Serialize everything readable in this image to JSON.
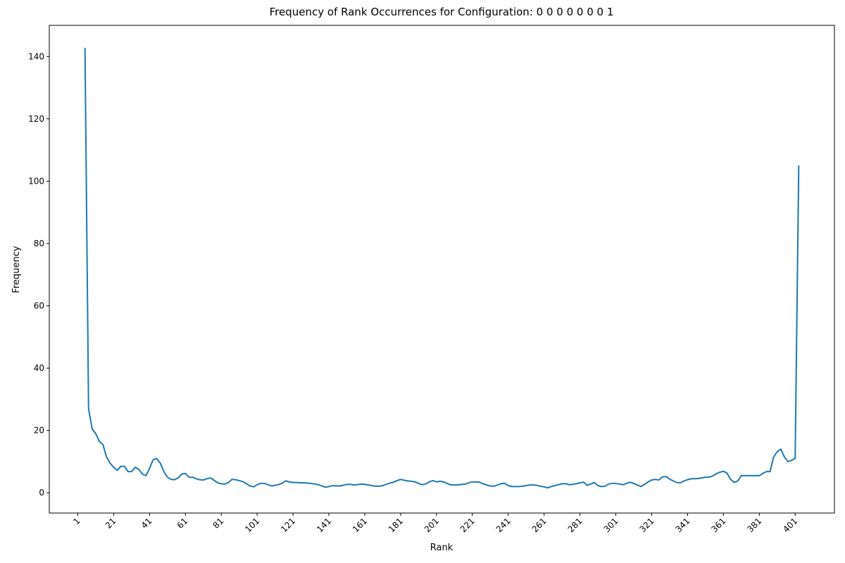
{
  "chart_data": {
    "type": "line",
    "title": "Frequency of Rank Occurrences for Configuration: 0 0 0 0 0 0 0 1",
    "xlabel": "Rank",
    "ylabel": "Frequency",
    "x": [
      5,
      7,
      9,
      11,
      13,
      15,
      17,
      19,
      21,
      23,
      25,
      27,
      29,
      31,
      33,
      35,
      37,
      39,
      41,
      43,
      45,
      47,
      49,
      51,
      53,
      55,
      57,
      59,
      61,
      63,
      65,
      67,
      69,
      71,
      73,
      75,
      77,
      79,
      81,
      83,
      85,
      87,
      89,
      91,
      93,
      95,
      97,
      99,
      101,
      103,
      105,
      107,
      109,
      111,
      113,
      115,
      117,
      119,
      121,
      123,
      125,
      127,
      129,
      131,
      133,
      135,
      137,
      139,
      141,
      143,
      145,
      147,
      149,
      151,
      153,
      155,
      157,
      159,
      161,
      163,
      165,
      167,
      169,
      171,
      173,
      175,
      177,
      179,
      181,
      183,
      185,
      187,
      189,
      191,
      193,
      195,
      197,
      199,
      201,
      203,
      205,
      207,
      209,
      211,
      213,
      215,
      217,
      219,
      221,
      223,
      225,
      227,
      229,
      231,
      233,
      235,
      237,
      239,
      241,
      243,
      245,
      247,
      249,
      251,
      253,
      255,
      257,
      259,
      261,
      263,
      265,
      267,
      269,
      271,
      273,
      275,
      277,
      279,
      281,
      283,
      285,
      287,
      289,
      291,
      293,
      295,
      297,
      299,
      301,
      303,
      305,
      307,
      309,
      311,
      313,
      315,
      317,
      319,
      321,
      323,
      325,
      327,
      329,
      331,
      333,
      335,
      337,
      339,
      341,
      343,
      345,
      347,
      349,
      351,
      353,
      355,
      357,
      359,
      361,
      363,
      365,
      367,
      369,
      371,
      373,
      375,
      377,
      379,
      381,
      383,
      385,
      387,
      389,
      391,
      393,
      395,
      397,
      399,
      401,
      403
    ],
    "series": [
      {
        "name": "Frequency",
        "color": "#1f77b4",
        "values": [
          142.8,
          27,
          20.5,
          19,
          16.5,
          15.5,
          11.5,
          9.5,
          8.2,
          7.2,
          8.5,
          8.5,
          6.8,
          6.8,
          8.2,
          7.5,
          6,
          5.5,
          7.8,
          10.6,
          11,
          9.5,
          6.8,
          5,
          4.3,
          4.2,
          4.8,
          6,
          6.2,
          5,
          5,
          4.5,
          4.2,
          4.1,
          4.5,
          4.8,
          4,
          3.2,
          2.9,
          2.8,
          3.3,
          4.3,
          4.2,
          3.9,
          3.6,
          2.9,
          2.2,
          1.9,
          2.6,
          3,
          3,
          2.6,
          2.2,
          2.4,
          2.6,
          3.1,
          3.8,
          3.5,
          3.3,
          3.3,
          3.2,
          3.2,
          3.1,
          3,
          2.8,
          2.6,
          2.2,
          1.8,
          2,
          2.3,
          2.2,
          2.2,
          2.4,
          2.7,
          2.7,
          2.5,
          2.6,
          2.8,
          2.7,
          2.5,
          2.3,
          2.1,
          2.1,
          2.3,
          2.7,
          3.1,
          3.4,
          3.9,
          4.3,
          4,
          3.8,
          3.7,
          3.5,
          3,
          2.6,
          2.8,
          3.5,
          3.9,
          3.5,
          3.7,
          3.5,
          3,
          2.5,
          2.5,
          2.5,
          2.7,
          2.8,
          3.2,
          3.5,
          3.5,
          3.4,
          2.9,
          2.5,
          2.2,
          2.1,
          2.5,
          2.9,
          3,
          2.3,
          2,
          2,
          2,
          2.1,
          2.3,
          2.5,
          2.5,
          2.4,
          2.1,
          1.9,
          1.6,
          2,
          2.3,
          2.6,
          2.9,
          2.9,
          2.6,
          2.7,
          2.9,
          3.2,
          3.4,
          2.4,
          2.8,
          3.3,
          2.3,
          2,
          2.1,
          2.8,
          3,
          3,
          2.8,
          2.6,
          3,
          3.4,
          3,
          2.5,
          2,
          2.7,
          3.5,
          4.1,
          4.3,
          4.1,
          5.1,
          5.2,
          4.4,
          3.8,
          3.3,
          3.2,
          3.8,
          4.2,
          4.5,
          4.5,
          4.6,
          4.8,
          5,
          5,
          5.4,
          6.1,
          6.6,
          6.9,
          6.3,
          4.3,
          3.3,
          3.8,
          5.5,
          5.5,
          5.5,
          5.5,
          5.5,
          5.5,
          6.2,
          6.8,
          6.8,
          11.5,
          13.2,
          14,
          11.5,
          10,
          10.4,
          11,
          105
        ]
      }
    ],
    "xlim": [
      -14.9,
      422.9
    ],
    "ylim": [
      -6.5,
      150
    ],
    "xticks": [
      1,
      21,
      41,
      61,
      81,
      101,
      121,
      141,
      161,
      181,
      201,
      221,
      241,
      261,
      281,
      301,
      321,
      341,
      361,
      381,
      401
    ],
    "yticks": [
      0,
      20,
      40,
      60,
      80,
      100,
      120,
      140
    ]
  }
}
